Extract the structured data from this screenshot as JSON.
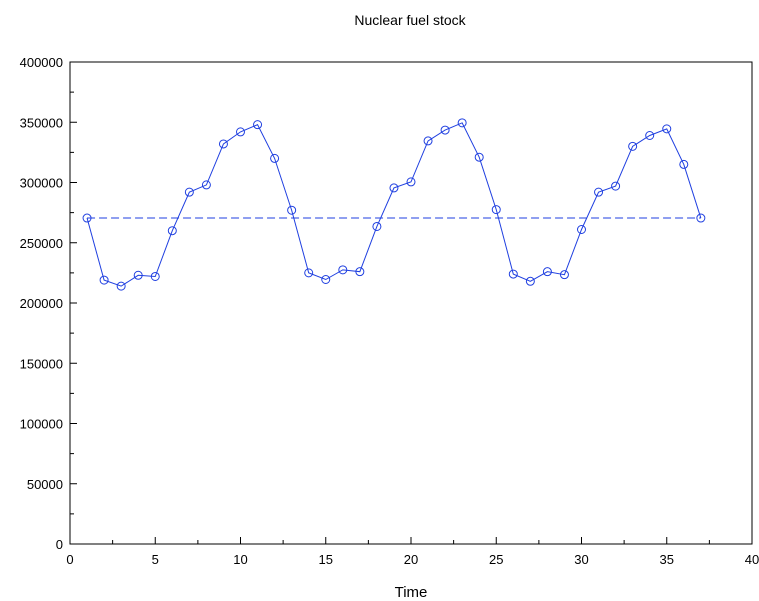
{
  "chart_data": {
    "type": "line",
    "title": "Nuclear fuel stock",
    "xlabel": "Time",
    "ylabel": "",
    "xlim": [
      0,
      40
    ],
    "ylim": [
      0,
      400000
    ],
    "x_major_ticks": [
      0,
      5,
      10,
      15,
      20,
      25,
      30,
      35,
      40
    ],
    "y_major_ticks": [
      0,
      50000,
      100000,
      150000,
      200000,
      250000,
      300000,
      350000,
      400000
    ],
    "x_tick_labels": [
      "0",
      "5",
      "10",
      "15",
      "20",
      "25",
      "30",
      "35",
      "40"
    ],
    "y_tick_labels": [
      "0",
      "50000",
      "100000",
      "150000",
      "200000",
      "250000",
      "300000",
      "350000",
      "400000"
    ],
    "grid": false,
    "series": [
      {
        "style": "solid-line-circle-markers",
        "color": "#1f3fe0",
        "x": [
          1,
          2,
          3,
          4,
          5,
          6,
          7,
          8,
          9,
          10,
          11,
          12,
          13,
          14,
          15,
          16,
          17,
          18,
          19,
          20,
          21,
          22,
          23,
          24,
          25,
          26,
          27,
          28,
          29,
          30,
          31,
          32,
          33,
          34,
          35,
          36,
          37
        ],
        "y": [
          270500,
          219000,
          214000,
          223000,
          222000,
          260000,
          292000,
          298000,
          332000,
          342000,
          348000,
          320000,
          277000,
          225000,
          219500,
          227500,
          226000,
          263500,
          295500,
          300500,
          334500,
          343500,
          349500,
          321000,
          277500,
          224000,
          218000,
          226000,
          223500,
          261000,
          292000,
          297000,
          330000,
          339000,
          344500,
          315000,
          270500
        ]
      },
      {
        "style": "dashed-line",
        "color": "#1f3fe0",
        "x": [
          1,
          37
        ],
        "y": [
          270500,
          270500
        ]
      }
    ]
  }
}
